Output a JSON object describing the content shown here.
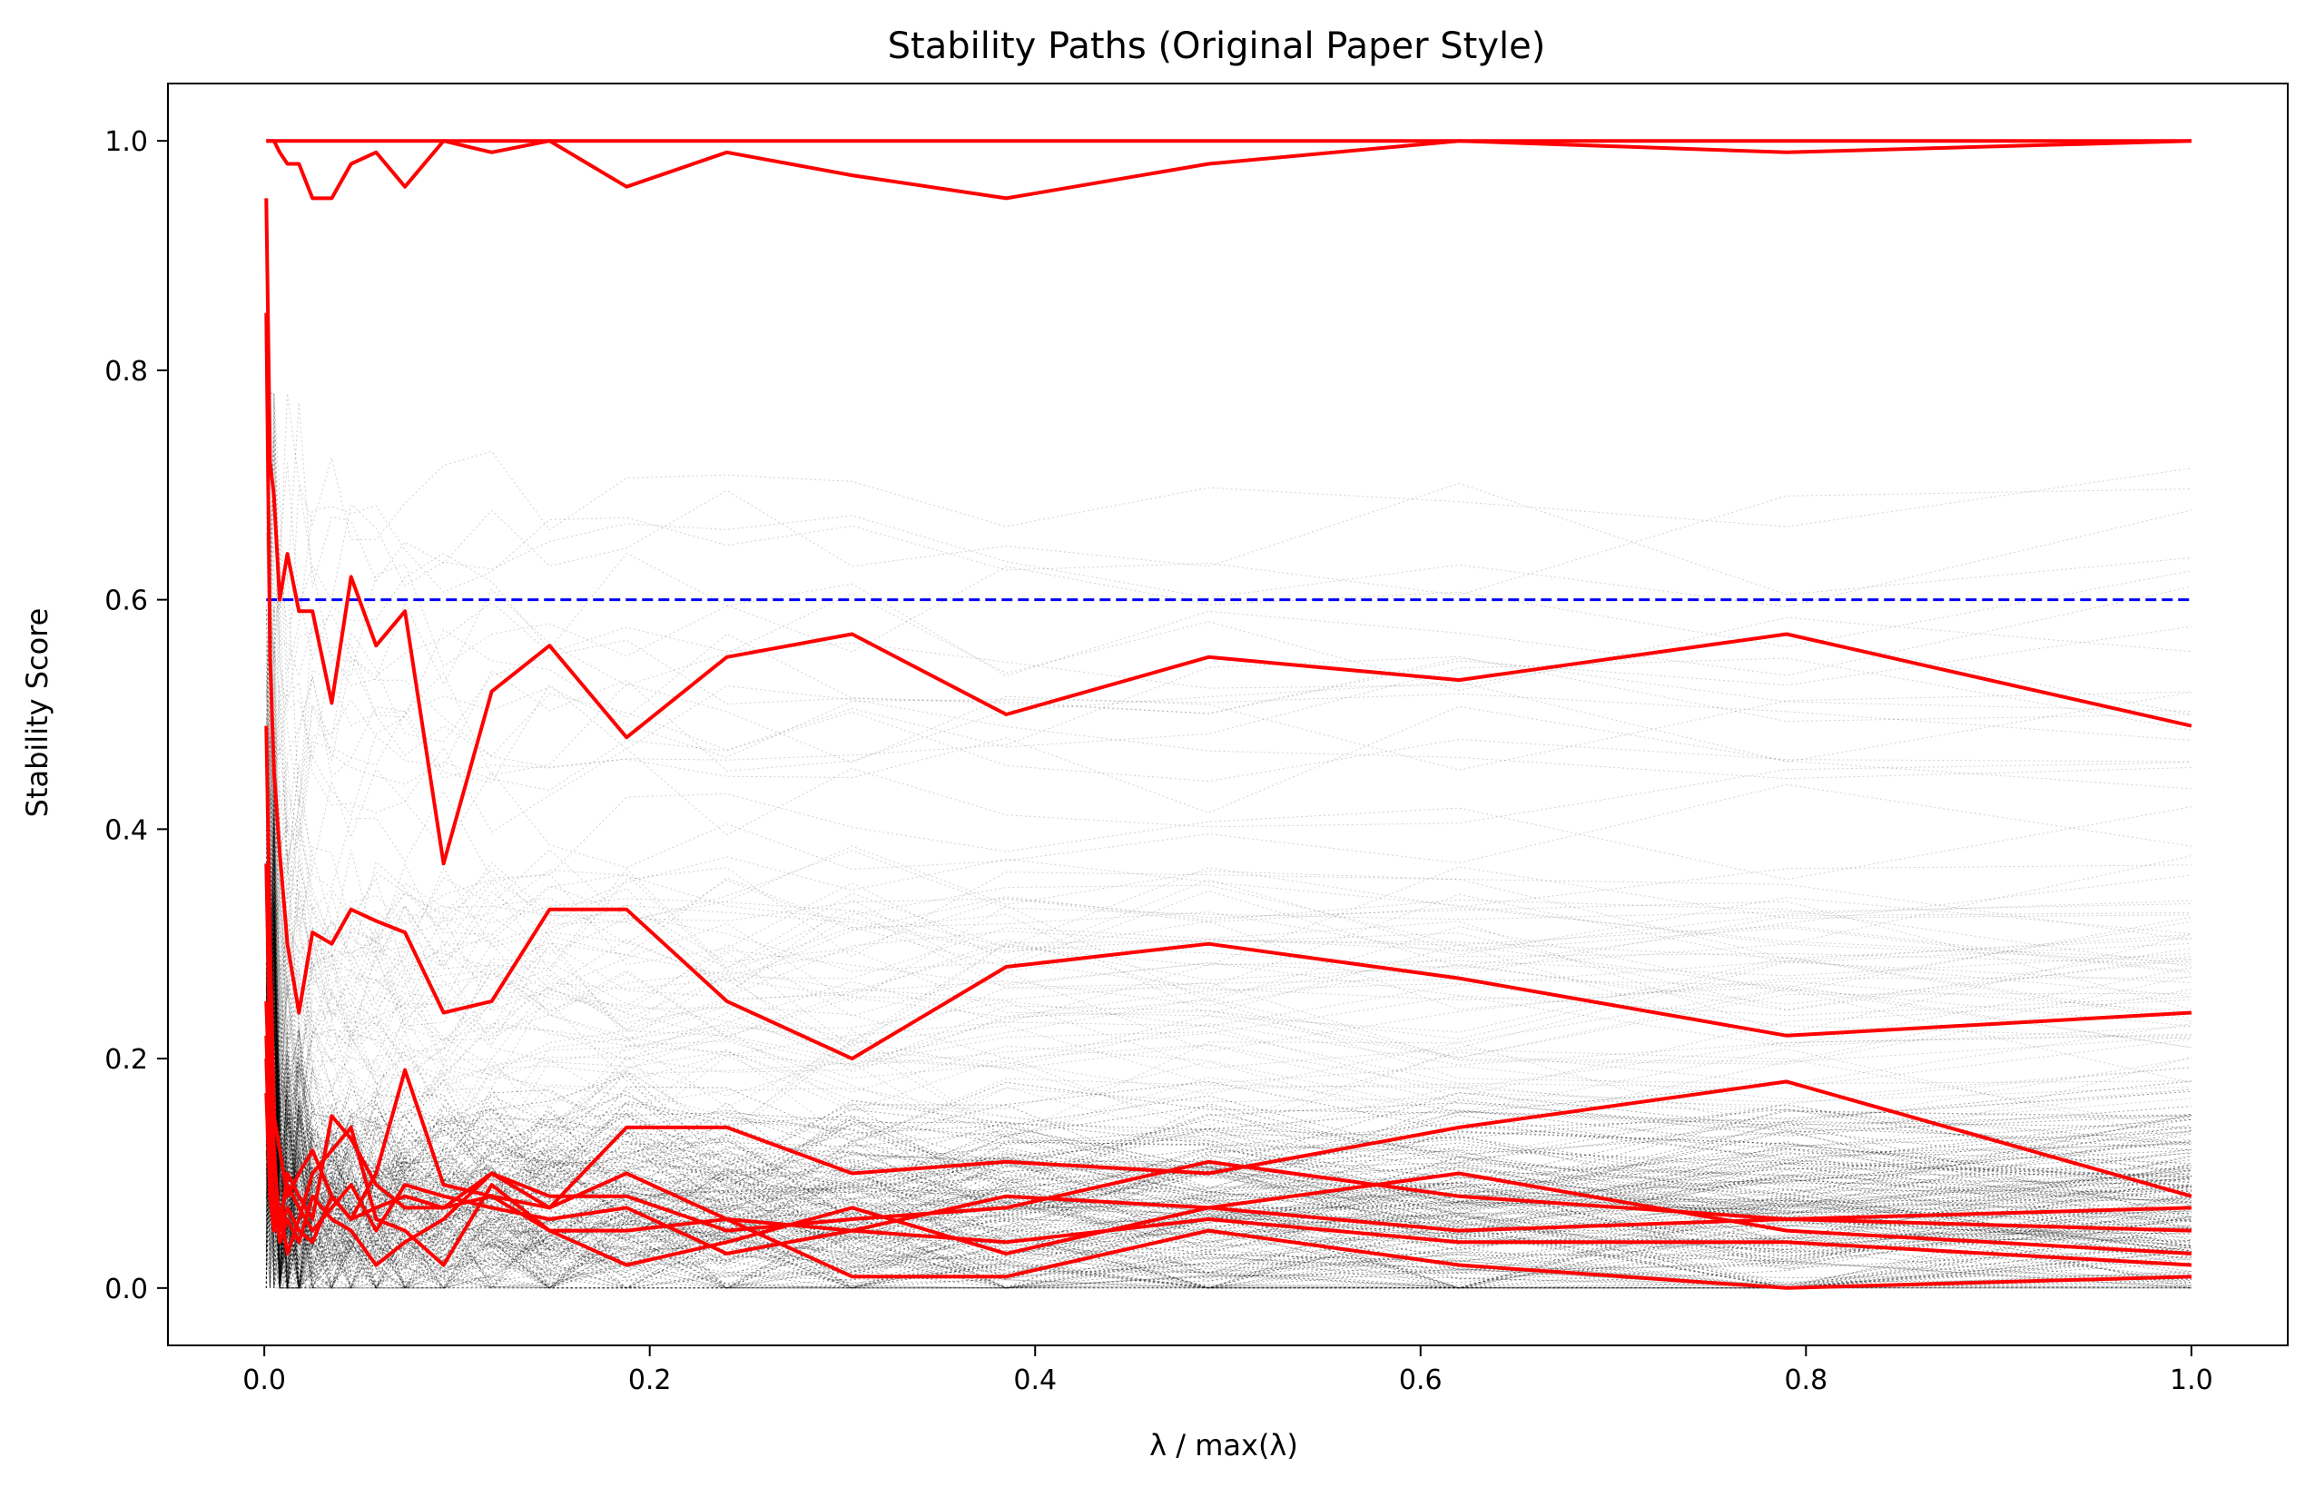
{
  "chart_data": {
    "type": "line",
    "title": "Stability Paths (Original Paper Style)",
    "xlabel": "λ / max(λ)",
    "ylabel": "Stability Score",
    "xlim": [
      -0.05,
      1.05
    ],
    "ylim": [
      -0.05,
      1.05
    ],
    "x_ticks": [
      "0.0",
      "0.2",
      "0.4",
      "0.6",
      "0.8",
      "1.0"
    ],
    "y_ticks": [
      "0.0",
      "0.2",
      "0.4",
      "0.6",
      "0.8",
      "1.0"
    ],
    "grid": false,
    "legend": "none",
    "colors": {
      "selected": "#ff0000",
      "threshold": "#0000ff",
      "background": "#000000"
    },
    "threshold": {
      "y": 0.6,
      "style": "dashed"
    },
    "x": [
      0.001,
      0.003,
      0.005,
      0.008,
      0.012,
      0.018,
      0.025,
      0.035,
      0.045,
      0.058,
      0.073,
      0.093,
      0.118,
      0.148,
      0.188,
      0.24,
      0.305,
      0.385,
      0.49,
      0.62,
      0.79,
      1.0
    ],
    "series": [
      {
        "values": [
          1.0,
          1.0,
          1.0,
          1.0,
          1.0,
          1.0,
          1.0,
          1.0,
          1.0,
          1.0,
          1.0,
          1.0,
          1.0,
          1.0,
          1.0,
          1.0,
          1.0,
          1.0,
          1.0,
          1.0,
          1.0,
          1.0
        ]
      },
      {
        "values": [
          1.0,
          1.0,
          1.0,
          0.99,
          0.98,
          0.98,
          0.95,
          0.95,
          0.98,
          0.99,
          0.96,
          1.0,
          0.99,
          1.0,
          0.96,
          0.99,
          0.97,
          0.95,
          0.98,
          1.0,
          0.99,
          1.0
        ]
      },
      {
        "values": [
          0.95,
          0.72,
          0.69,
          0.6,
          0.64,
          0.59,
          0.59,
          0.51,
          0.62,
          0.56,
          0.59,
          0.37,
          0.52,
          0.56,
          0.48,
          0.55,
          0.57,
          0.5,
          0.55,
          0.53,
          0.57,
          0.49
        ]
      },
      {
        "values": [
          0.85,
          0.55,
          0.45,
          0.38,
          0.3,
          0.24,
          0.31,
          0.3,
          0.33,
          0.32,
          0.31,
          0.24,
          0.25,
          0.33,
          0.33,
          0.25,
          0.2,
          0.28,
          0.3,
          0.27,
          0.22,
          0.24
        ]
      },
      {
        "values": [
          0.49,
          0.3,
          0.15,
          0.12,
          0.08,
          0.1,
          0.12,
          0.08,
          0.06,
          0.1,
          0.19,
          0.09,
          0.08,
          0.07,
          0.14,
          0.14,
          0.1,
          0.11,
          0.1,
          0.14,
          0.18,
          0.08
        ]
      },
      {
        "values": [
          0.37,
          0.2,
          0.12,
          0.05,
          0.1,
          0.08,
          0.06,
          0.15,
          0.13,
          0.09,
          0.07,
          0.07,
          0.1,
          0.08,
          0.08,
          0.05,
          0.06,
          0.07,
          0.11,
          0.08,
          0.06,
          0.07
        ]
      },
      {
        "values": [
          0.25,
          0.15,
          0.05,
          0.07,
          0.03,
          0.06,
          0.1,
          0.12,
          0.14,
          0.06,
          0.05,
          0.02,
          0.09,
          0.05,
          0.02,
          0.04,
          0.07,
          0.03,
          0.07,
          0.05,
          0.06,
          0.05
        ]
      },
      {
        "values": [
          0.2,
          0.1,
          0.08,
          0.04,
          0.06,
          0.04,
          0.08,
          0.06,
          0.05,
          0.02,
          0.04,
          0.06,
          0.1,
          0.07,
          0.1,
          0.06,
          0.05,
          0.08,
          0.07,
          0.1,
          0.05,
          0.03
        ]
      },
      {
        "values": [
          0.17,
          0.08,
          0.05,
          0.06,
          0.09,
          0.07,
          0.05,
          0.07,
          0.09,
          0.05,
          0.09,
          0.08,
          0.07,
          0.06,
          0.07,
          0.03,
          0.05,
          0.04,
          0.06,
          0.04,
          0.04,
          0.02
        ]
      },
      {
        "values": [
          0.22,
          0.12,
          0.06,
          0.05,
          0.07,
          0.05,
          0.04,
          0.08,
          0.06,
          0.07,
          0.08,
          0.07,
          0.08,
          0.05,
          0.05,
          0.06,
          0.01,
          0.01,
          0.05,
          0.02,
          0.0,
          0.01
        ]
      }
    ]
  }
}
